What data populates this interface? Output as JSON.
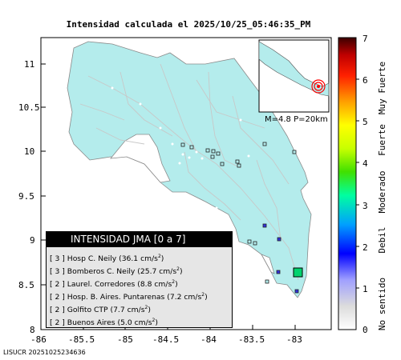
{
  "title": "Intensidad calculada el 2025/10/25_05:46:35_PM",
  "footer": "LISUCR 20251025234636",
  "x_ticks": [
    "-86",
    "-85.5",
    "-85",
    "-84.5",
    "-84",
    "-83.5",
    "-83"
  ],
  "y_ticks": [
    "11",
    "10.5",
    "10",
    "9.5",
    "9",
    "8.5",
    "8"
  ],
  "inset_label": "M=4.8 P=20km",
  "colorbar": {
    "ticks": [
      "7",
      "6",
      "5",
      "4",
      "3",
      "2",
      "1",
      "0"
    ],
    "categories": [
      "Muy Fuerte",
      "Fuerte",
      "Moderado",
      "Debil",
      "No sentido"
    ]
  },
  "legend": {
    "title": "INTENSIDAD JMA [0 a 7]",
    "rows": [
      {
        "level": "[ 3 ]",
        "station": "Hosp C. Neily",
        "value": "(36.1 cm/s",
        "exp": "2",
        "close": ")"
      },
      {
        "level": "[ 3 ]",
        "station": "Bomberos C. Neily",
        "value": "(25.7 cm/s",
        "exp": "2",
        "close": ")"
      },
      {
        "level": "[ 2 ]",
        "station": "Laurel. Corredores",
        "value": "(8.8 cm/s",
        "exp": "2",
        "close": ")"
      },
      {
        "level": "[ 2 ]",
        "station": "Hosp. B. Aires. Puntarenas",
        "value": "(7.2 cm/s",
        "exp": "2",
        "close": ")"
      },
      {
        "level": "[ 2 ]",
        "station": "Golfito CTP",
        "value": "(7.7 cm/s",
        "exp": "2",
        "close": ")"
      },
      {
        "level": "[ 2 ]",
        "station": "Buenos Aires",
        "value": "(5.0 cm/s",
        "exp": "2",
        "close": ")"
      }
    ]
  },
  "colors": {
    "land": "#b4ecec",
    "sea": "#ffffff",
    "roads": "#c8c8c8",
    "station_level2": "#3232dc",
    "epicenter": "#00d26e"
  }
}
